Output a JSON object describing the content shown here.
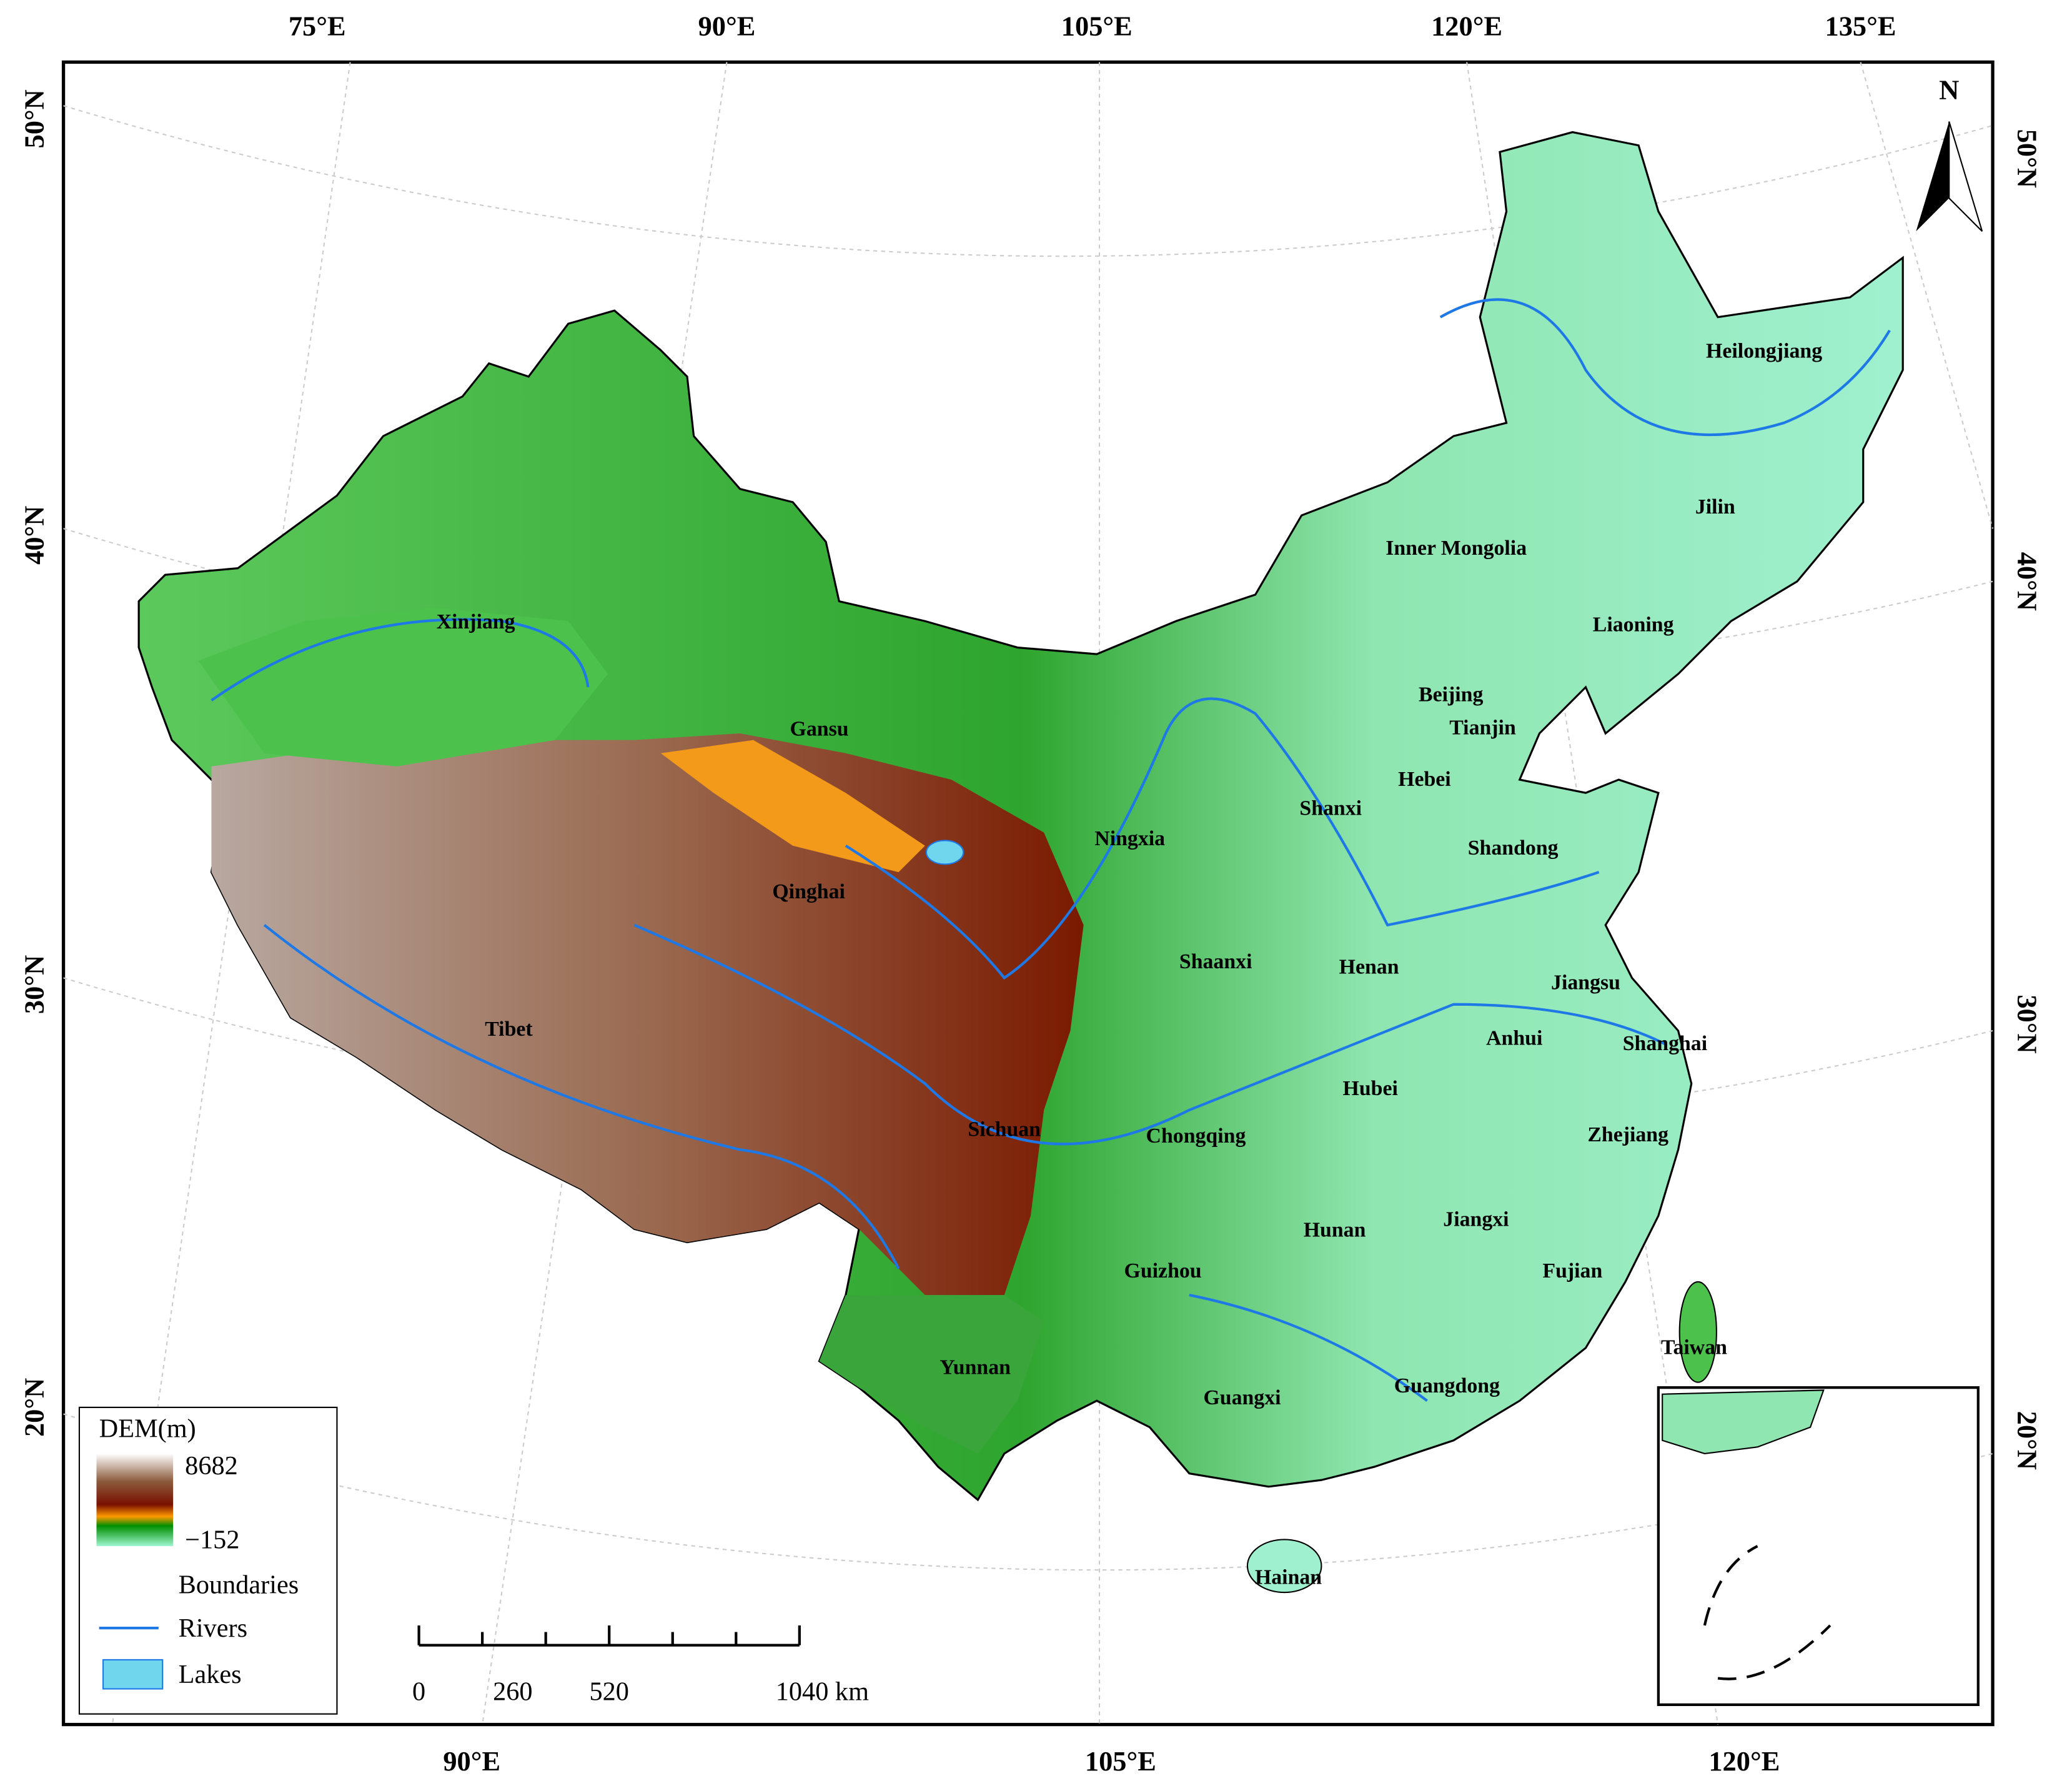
{
  "map": {
    "top_lon_labels": [
      "75°E",
      "90°E",
      "105°E",
      "120°E",
      "135°E"
    ],
    "bottom_lon_labels": [
      "90°E",
      "105°E",
      "120°E"
    ],
    "left_lat_labels": [
      "50°N",
      "40°N",
      "30°N",
      "20°N"
    ],
    "right_lat_labels": [
      "50°N",
      "40°N",
      "30°N",
      "20°N"
    ],
    "north": "N",
    "provinces": [
      "Xinjiang",
      "Gansu",
      "Qinghai",
      "Tibet",
      "Sichuan",
      "Yunnan",
      "Guizhou",
      "Guangxi",
      "Guangdong",
      "Hainan",
      "Chongqing",
      "Hunan",
      "Jiangxi",
      "Fujian",
      "Zhejiang",
      "Hubei",
      "Anhui",
      "Shanghai",
      "Jiangsu",
      "Henan",
      "Shaanxi",
      "Ningxia",
      "Shanxi",
      "Hebei",
      "Shandong",
      "Beijing",
      "Tianjin",
      "Liaoning",
      "Jilin",
      "Heilongjiang",
      "Inner Mongolia",
      "Taiwan"
    ]
  },
  "legend": {
    "title": "DEM(m)",
    "max": "8682",
    "min": "−152",
    "items": [
      "Boundaries",
      "Rivers",
      "Lakes"
    ]
  },
  "scale_bar": {
    "labels": [
      "0",
      "260",
      "520",
      "1040 km"
    ]
  }
}
